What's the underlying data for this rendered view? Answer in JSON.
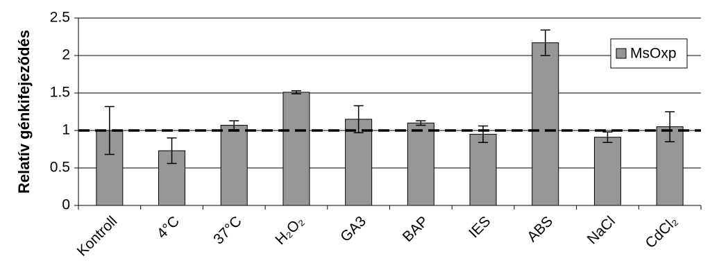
{
  "chart_data": {
    "type": "bar",
    "y_label": "Relatív génkifejeződés",
    "categories": [
      "Kontroll",
      "4°C",
      "37°C",
      "H₂O₂",
      "GA3",
      "BAP",
      "IES",
      "ABS",
      "NaCl",
      "CdCl₂"
    ],
    "series": [
      {
        "name": "MsOxp",
        "color": "#969696",
        "values": [
          1.0,
          0.73,
          1.07,
          1.51,
          1.15,
          1.1,
          0.95,
          2.17,
          0.91,
          1.05
        ],
        "errors": [
          0.32,
          0.17,
          0.06,
          0.02,
          0.18,
          0.03,
          0.11,
          0.17,
          0.07,
          0.2
        ]
      }
    ],
    "reference_line": 1,
    "ylim": [
      0,
      2.5
    ],
    "yticks": [
      0,
      0.5,
      1,
      1.5,
      2,
      2.5
    ],
    "grid": true,
    "legend": "top-right"
  }
}
